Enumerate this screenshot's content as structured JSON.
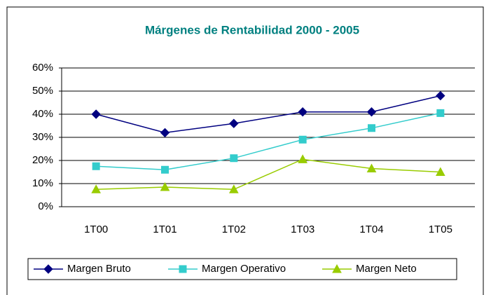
{
  "chart_data": {
    "type": "line",
    "title": "Márgenes de Rentabilidad 2000 - 2005",
    "categories": [
      "1T00",
      "1T01",
      "1T02",
      "1T03",
      "1T04",
      "1T05"
    ],
    "series": [
      {
        "name": "Margen Bruto",
        "color": "#000080",
        "marker": "diamond",
        "values": [
          40,
          32,
          36,
          41,
          41,
          48
        ]
      },
      {
        "name": "Margen Operativo",
        "color": "#33cccc",
        "marker": "square",
        "values": [
          17.5,
          16,
          21,
          29,
          34,
          40.5
        ]
      },
      {
        "name": "Margen Neto",
        "color": "#99cc00",
        "marker": "triangle",
        "values": [
          7.5,
          8.5,
          7.5,
          20.5,
          16.5,
          15
        ]
      }
    ],
    "ylim": [
      0,
      60
    ],
    "yticks": [
      {
        "value": 0,
        "label": "0%"
      },
      {
        "value": 10,
        "label": "10%"
      },
      {
        "value": 20,
        "label": "20%"
      },
      {
        "value": 30,
        "label": "30%"
      },
      {
        "value": 40,
        "label": "40%"
      },
      {
        "value": 50,
        "label": "50%"
      },
      {
        "value": 60,
        "label": "60%"
      }
    ],
    "grid": true,
    "legend": "bottom"
  }
}
